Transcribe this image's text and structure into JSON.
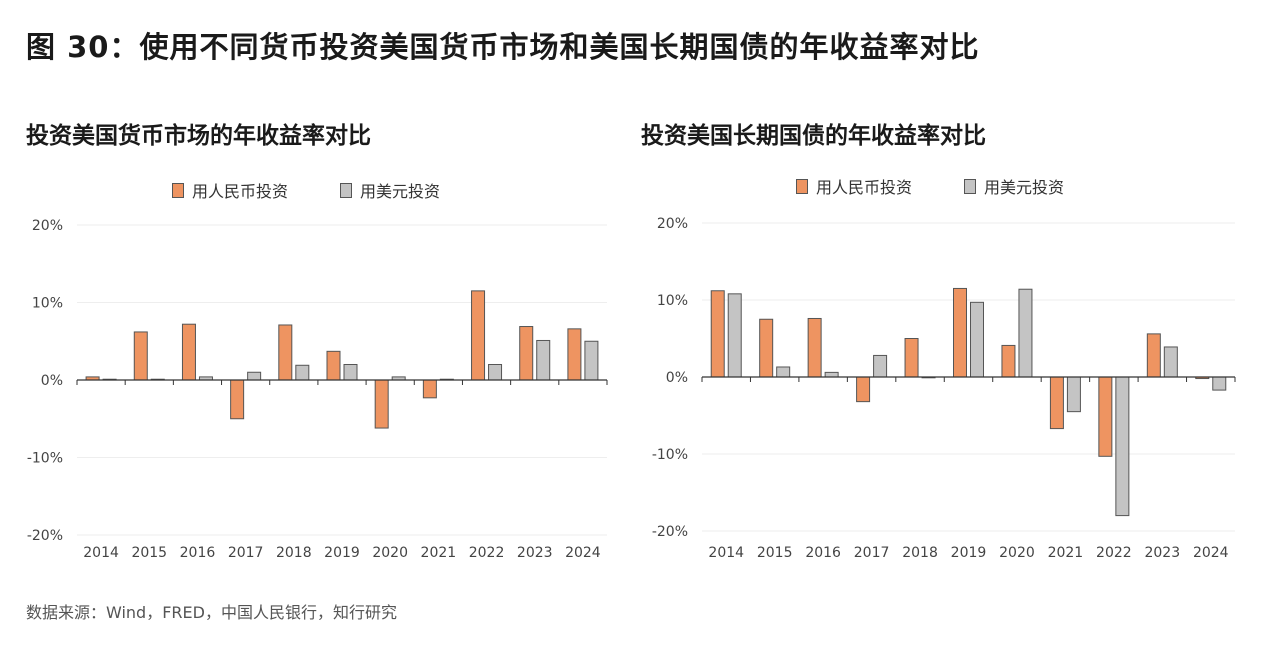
{
  "title": "图 30：使用不同货币投资美国货币市场和美国长期国债的年收益率对比",
  "source": "数据来源：Wind，FRED，中国人民银行，知行研究",
  "colors": {
    "cny": "#ee9461",
    "usd": "#c4c4c4",
    "edge": "#555555"
  },
  "chart_data": [
    {
      "type": "bar",
      "title": "投资美国货币市场的年收益率对比",
      "categories": [
        "2014",
        "2015",
        "2016",
        "2017",
        "2018",
        "2019",
        "2020",
        "2021",
        "2022",
        "2023",
        "2024"
      ],
      "series": [
        {
          "name": "用人民币投资",
          "values": [
            0.4,
            6.2,
            7.2,
            -5.0,
            7.1,
            3.7,
            -6.2,
            -2.3,
            11.5,
            6.9,
            6.6
          ]
        },
        {
          "name": "用美元投资",
          "values": [
            0.1,
            0.1,
            0.4,
            1.0,
            1.9,
            2.0,
            0.4,
            0.1,
            2.0,
            5.1,
            5.0
          ]
        }
      ],
      "yticks": [
        "20%",
        "10%",
        "0%",
        "-10%",
        "-20%"
      ],
      "ylim": [
        -20,
        20
      ],
      "grid": true,
      "legend": "top"
    },
    {
      "type": "bar",
      "title": "投资美国长期国债的年收益率对比",
      "categories": [
        "2014",
        "2015",
        "2016",
        "2017",
        "2018",
        "2019",
        "2020",
        "2021",
        "2022",
        "2023",
        "2024"
      ],
      "series": [
        {
          "name": "用人民币投资",
          "values": [
            11.2,
            7.5,
            7.6,
            -3.2,
            5.0,
            11.5,
            4.1,
            -6.7,
            -10.3,
            5.6,
            -0.2
          ]
        },
        {
          "name": "用美元投资",
          "values": [
            10.8,
            1.3,
            0.6,
            2.8,
            -0.1,
            9.7,
            11.4,
            -4.5,
            -18.0,
            3.9,
            -1.7
          ]
        }
      ],
      "yticks": [
        "20%",
        "10%",
        "0%",
        "-10%",
        "-20%"
      ],
      "ylim": [
        -20,
        20
      ],
      "grid": true,
      "legend": "top"
    }
  ]
}
